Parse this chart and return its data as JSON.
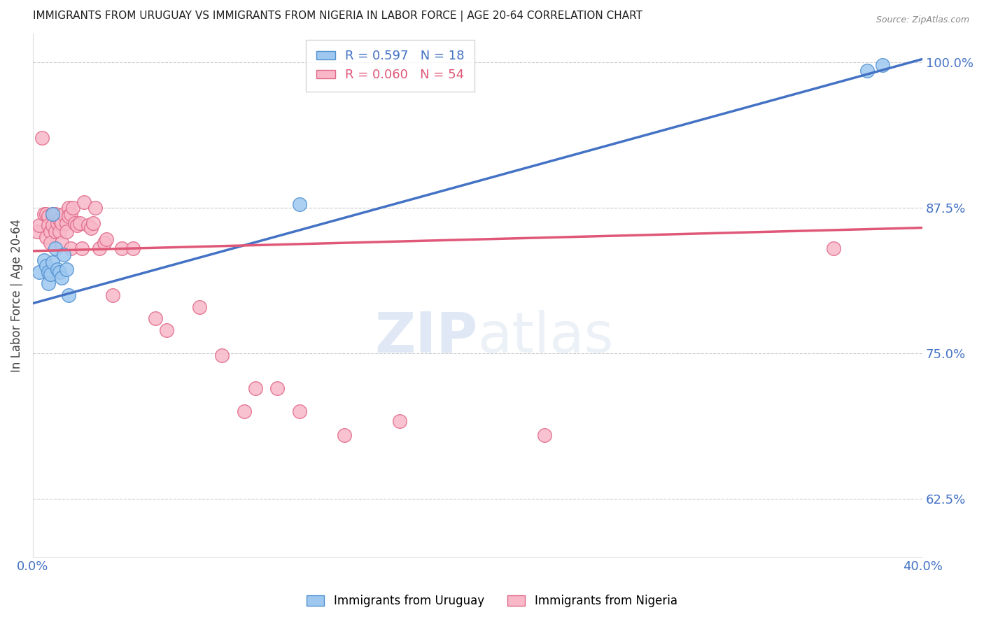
{
  "title": "IMMIGRANTS FROM URUGUAY VS IMMIGRANTS FROM NIGERIA IN LABOR FORCE | AGE 20-64 CORRELATION CHART",
  "source": "Source: ZipAtlas.com",
  "ylabel": "In Labor Force | Age 20-64",
  "xlim": [
    0.0,
    0.4
  ],
  "ylim": [
    0.575,
    1.025
  ],
  "yticks_right": [
    1.0,
    0.875,
    0.75,
    0.625
  ],
  "ytick_labels_right": [
    "100.0%",
    "87.5%",
    "75.0%",
    "62.5%"
  ],
  "xticks": [
    0.0,
    0.05,
    0.1,
    0.15,
    0.2,
    0.25,
    0.3,
    0.35,
    0.4
  ],
  "xtick_labels": [
    "0.0%",
    "",
    "",
    "",
    "",
    "",
    "",
    "",
    "40.0%"
  ],
  "title_color": "#222222",
  "source_color": "#888888",
  "axis_color": "#4472C4",
  "grid_color": "#cccccc",
  "uruguay_color": "#9EC8F0",
  "nigeria_color": "#F8B8C8",
  "uruguay_edge": "#5090D0",
  "nigeria_edge": "#E06888",
  "uruguay_R": 0.597,
  "uruguay_N": 18,
  "nigeria_R": 0.06,
  "nigeria_N": 54,
  "uruguay_line_color": "#4472C4",
  "nigeria_line_color": "#E05878",
  "watermark_zip": "ZIP",
  "watermark_atlas": "atlas",
  "uruguay_x": [
    0.003,
    0.005,
    0.006,
    0.007,
    0.007,
    0.008,
    0.009,
    0.009,
    0.01,
    0.011,
    0.012,
    0.013,
    0.014,
    0.015,
    0.016,
    0.12,
    0.375,
    0.382
  ],
  "uruguay_y": [
    0.82,
    0.83,
    0.825,
    0.82,
    0.81,
    0.818,
    0.87,
    0.828,
    0.84,
    0.822,
    0.82,
    0.815,
    0.835,
    0.822,
    0.8,
    0.878,
    0.993,
    0.998
  ],
  "nigeria_x": [
    0.002,
    0.003,
    0.004,
    0.005,
    0.006,
    0.006,
    0.007,
    0.007,
    0.008,
    0.008,
    0.009,
    0.009,
    0.01,
    0.01,
    0.011,
    0.012,
    0.012,
    0.013,
    0.013,
    0.014,
    0.015,
    0.015,
    0.016,
    0.016,
    0.017,
    0.017,
    0.018,
    0.019,
    0.02,
    0.021,
    0.022,
    0.023,
    0.025,
    0.026,
    0.027,
    0.028,
    0.03,
    0.032,
    0.033,
    0.036,
    0.04,
    0.045,
    0.055,
    0.06,
    0.075,
    0.085,
    0.095,
    0.1,
    0.11,
    0.12,
    0.14,
    0.165,
    0.23,
    0.36
  ],
  "nigeria_y": [
    0.855,
    0.86,
    0.935,
    0.87,
    0.87,
    0.85,
    0.868,
    0.86,
    0.855,
    0.845,
    0.87,
    0.86,
    0.87,
    0.855,
    0.862,
    0.865,
    0.855,
    0.862,
    0.845,
    0.87,
    0.862,
    0.855,
    0.875,
    0.868,
    0.87,
    0.84,
    0.875,
    0.862,
    0.86,
    0.862,
    0.84,
    0.88,
    0.86,
    0.858,
    0.862,
    0.875,
    0.84,
    0.845,
    0.848,
    0.8,
    0.84,
    0.84,
    0.78,
    0.77,
    0.79,
    0.748,
    0.7,
    0.72,
    0.72,
    0.7,
    0.68,
    0.692,
    0.68,
    0.84
  ],
  "legend_box_color": "#FFFFFF",
  "legend_border_color": "#CCCCCC"
}
